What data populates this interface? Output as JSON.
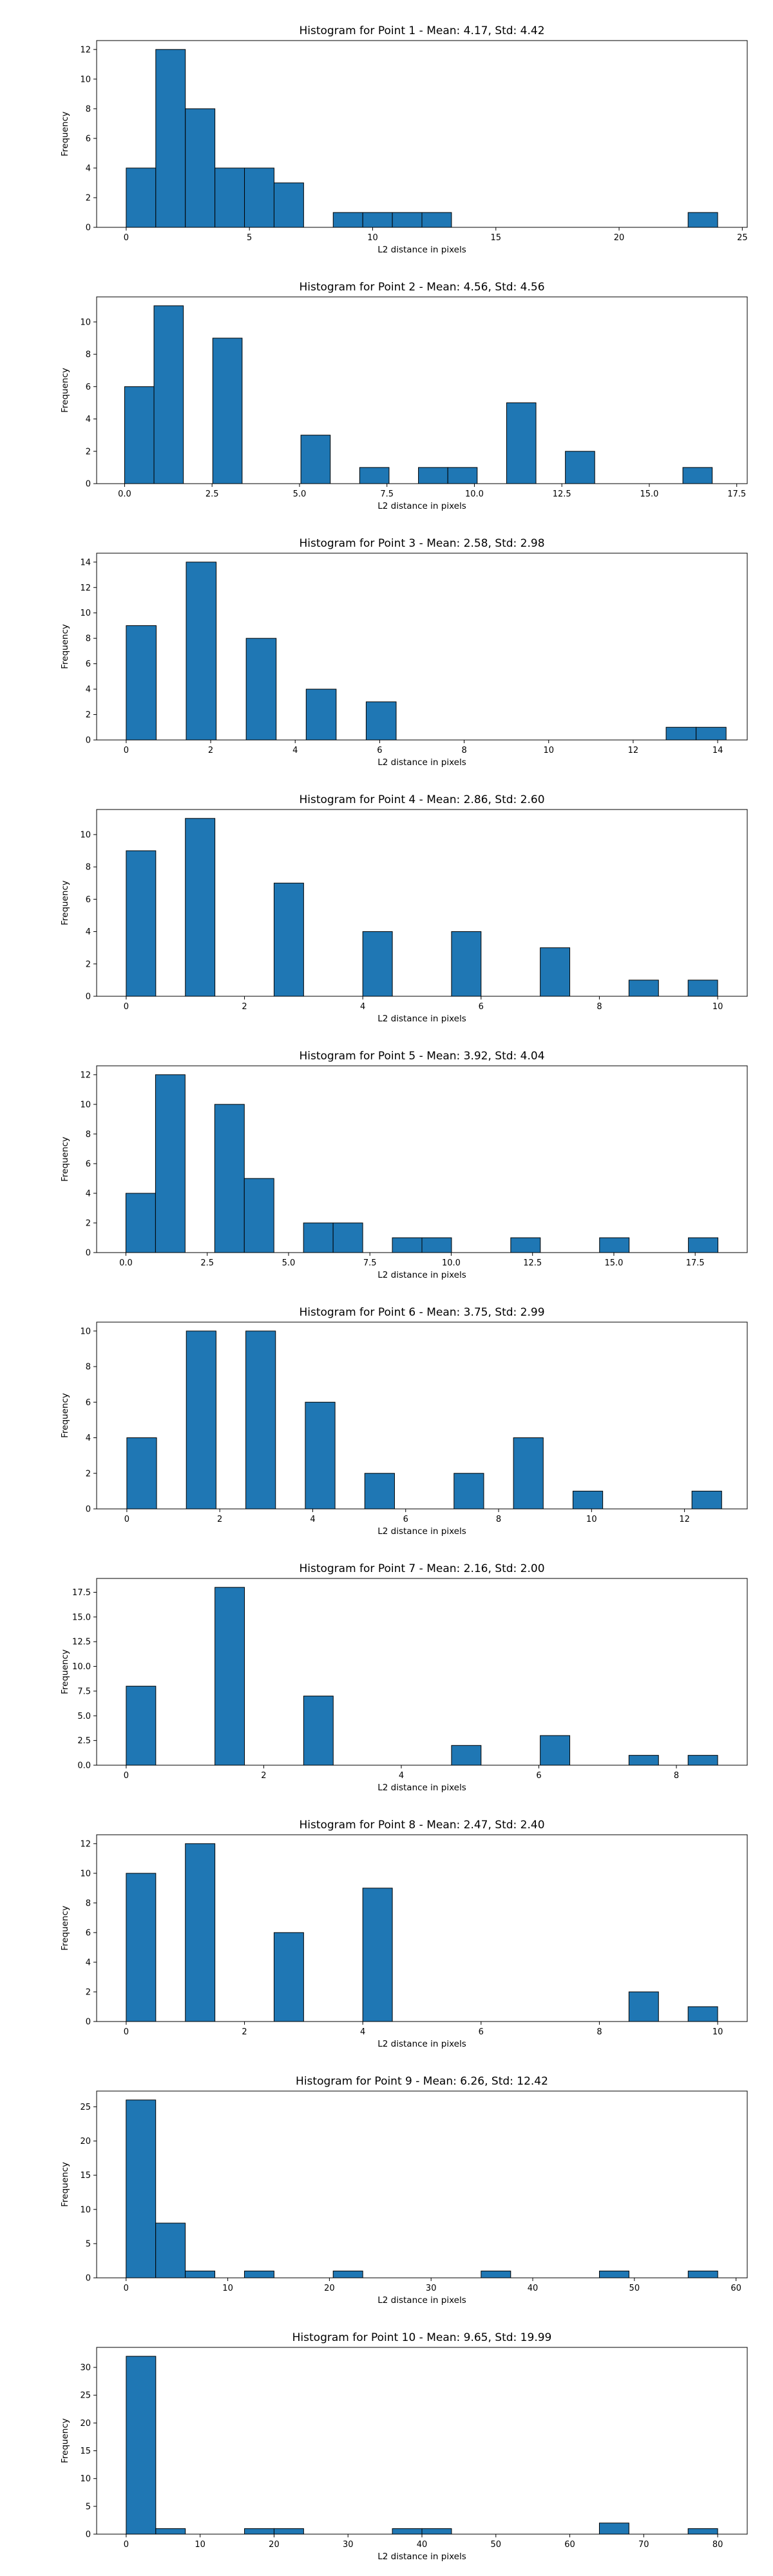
{
  "colors": {
    "bar": "#1f77b4",
    "edge": "#000000",
    "background": "#ffffff"
  },
  "chart_data": [
    {
      "type": "bar",
      "title": "Histogram for Point 1 - Mean: 4.17, Std: 4.42",
      "xlabel": "L2 distance in pixels",
      "ylabel": "Frequency",
      "xlim": [
        -1.2,
        25.2
      ],
      "ylim": [
        0,
        12.6
      ],
      "xticks": [
        0,
        5,
        10,
        15,
        20,
        25
      ],
      "xtick_labels": [
        "0",
        "5",
        "10",
        "15",
        "20",
        "25"
      ],
      "yticks": [
        0,
        2,
        4,
        6,
        8,
        10,
        12
      ],
      "ytick_labels": [
        "0",
        "2",
        "4",
        "6",
        "8",
        "10",
        "12"
      ],
      "bin_start": 0.0,
      "bin_width": 1.2,
      "counts": [
        4,
        12,
        8,
        4,
        4,
        3,
        0,
        1,
        1,
        1,
        1,
        0,
        0,
        0,
        0,
        0,
        0,
        0,
        0,
        1
      ]
    },
    {
      "type": "bar",
      "title": "Histogram for Point 2 - Mean: 4.56, Std: 4.56",
      "xlabel": "L2 distance in pixels",
      "ylabel": "Frequency",
      "xlim": [
        -0.8,
        17.8
      ],
      "ylim": [
        0,
        11.55
      ],
      "xticks": [
        0,
        2.5,
        5,
        7.5,
        10,
        12.5,
        15,
        17.5
      ],
      "xtick_labels": [
        "0.0",
        "2.5",
        "5.0",
        "7.5",
        "10.0",
        "12.5",
        "15.0",
        "17.5"
      ],
      "yticks": [
        0,
        2,
        4,
        6,
        8,
        10
      ],
      "ytick_labels": [
        "0",
        "2",
        "4",
        "6",
        "8",
        "10"
      ],
      "bin_start": 0.0,
      "bin_width": 0.84,
      "counts": [
        6,
        11,
        0,
        9,
        0,
        0,
        3,
        0,
        1,
        0,
        1,
        1,
        0,
        5,
        0,
        2,
        0,
        0,
        0,
        1
      ]
    },
    {
      "type": "bar",
      "title": "Histogram for Point 3 - Mean: 2.58, Std: 2.98",
      "xlabel": "L2 distance in pixels",
      "ylabel": "Frequency",
      "xlim": [
        -0.7,
        14.7
      ],
      "ylim": [
        0,
        14.7
      ],
      "xticks": [
        0,
        2,
        4,
        6,
        8,
        10,
        12,
        14
      ],
      "xtick_labels": [
        "0",
        "2",
        "4",
        "6",
        "8",
        "10",
        "12",
        "14"
      ],
      "yticks": [
        0,
        2,
        4,
        6,
        8,
        10,
        12,
        14
      ],
      "ytick_labels": [
        "0",
        "2",
        "4",
        "6",
        "8",
        "10",
        "12",
        "14"
      ],
      "bin_start": 0.0,
      "bin_width": 0.71,
      "counts": [
        9,
        0,
        14,
        0,
        8,
        0,
        4,
        0,
        3,
        0,
        0,
        0,
        0,
        0,
        0,
        0,
        0,
        0,
        1,
        1
      ]
    },
    {
      "type": "bar",
      "title": "Histogram for Point 4 - Mean: 2.86, Std: 2.60",
      "xlabel": "L2 distance in pixels",
      "ylabel": "Frequency",
      "xlim": [
        -0.5,
        10.5
      ],
      "ylim": [
        0,
        11.55
      ],
      "xticks": [
        0,
        2,
        4,
        6,
        8,
        10
      ],
      "xtick_labels": [
        "0",
        "2",
        "4",
        "6",
        "8",
        "10"
      ],
      "yticks": [
        0,
        2,
        4,
        6,
        8,
        10
      ],
      "ytick_labels": [
        "0",
        "2",
        "4",
        "6",
        "8",
        "10"
      ],
      "bin_start": 0.0,
      "bin_width": 0.5,
      "counts": [
        9,
        0,
        11,
        0,
        0,
        7,
        0,
        0,
        4,
        0,
        0,
        4,
        0,
        0,
        3,
        0,
        0,
        1,
        0,
        1
      ]
    },
    {
      "type": "bar",
      "title": "Histogram for Point 5 - Mean: 3.92, Std: 4.04",
      "xlabel": "L2 distance in pixels",
      "ylabel": "Frequency",
      "xlim": [
        -0.9,
        19.1
      ],
      "ylim": [
        0,
        12.6
      ],
      "xticks": [
        0,
        2.5,
        5,
        7.5,
        10,
        12.5,
        15,
        17.5
      ],
      "xtick_labels": [
        "0.0",
        "2.5",
        "5.0",
        "7.5",
        "10.0",
        "12.5",
        "15.0",
        "17.5"
      ],
      "yticks": [
        0,
        2,
        4,
        6,
        8,
        10,
        12
      ],
      "ytick_labels": [
        "0",
        "2",
        "4",
        "6",
        "8",
        "10",
        "12"
      ],
      "bin_start": 0.0,
      "bin_width": 0.91,
      "counts": [
        4,
        12,
        0,
        10,
        5,
        0,
        2,
        2,
        0,
        1,
        1,
        0,
        0,
        1,
        0,
        0,
        1,
        0,
        0,
        1
      ]
    },
    {
      "type": "bar",
      "title": "Histogram for Point 6 - Mean: 3.75, Std: 2.99",
      "xlabel": "L2 distance in pixels",
      "ylabel": "Frequency",
      "xlim": [
        -0.65,
        13.35
      ],
      "ylim": [
        0,
        10.5
      ],
      "xticks": [
        0,
        2,
        4,
        6,
        8,
        10,
        12
      ],
      "xtick_labels": [
        "0",
        "2",
        "4",
        "6",
        "8",
        "10",
        "12"
      ],
      "yticks": [
        0,
        2,
        4,
        6,
        8,
        10
      ],
      "ytick_labels": [
        "0",
        "2",
        "4",
        "6",
        "8",
        "10"
      ],
      "bin_start": 0.0,
      "bin_width": 0.64,
      "counts": [
        4,
        0,
        10,
        0,
        10,
        0,
        6,
        0,
        2,
        0,
        0,
        2,
        0,
        4,
        0,
        1,
        0,
        0,
        0,
        1
      ]
    },
    {
      "type": "bar",
      "title": "Histogram for Point 7 - Mean: 2.16, Std: 2.00",
      "xlabel": "L2 distance in pixels",
      "ylabel": "Frequency",
      "xlim": [
        -0.43,
        9.03
      ],
      "ylim": [
        0,
        18.9
      ],
      "xticks": [
        0,
        2,
        4,
        6,
        8
      ],
      "xtick_labels": [
        "0",
        "2",
        "4",
        "6",
        "8"
      ],
      "yticks": [
        0,
        2.5,
        5,
        7.5,
        10,
        12.5,
        15,
        17.5
      ],
      "ytick_labels": [
        "0.0",
        "2.5",
        "5.0",
        "7.5",
        "10.0",
        "12.5",
        "15.0",
        "17.5"
      ],
      "bin_start": 0.0,
      "bin_width": 0.43,
      "counts": [
        8,
        0,
        0,
        18,
        0,
        0,
        7,
        0,
        0,
        0,
        0,
        2,
        0,
        0,
        3,
        0,
        0,
        1,
        0,
        1
      ]
    },
    {
      "type": "bar",
      "title": "Histogram for Point 8 - Mean: 2.47, Std: 2.40",
      "xlabel": "L2 distance in pixels",
      "ylabel": "Frequency",
      "xlim": [
        -0.5,
        10.5
      ],
      "ylim": [
        0,
        12.6
      ],
      "xticks": [
        0,
        2,
        4,
        6,
        8,
        10
      ],
      "xtick_labels": [
        "0",
        "2",
        "4",
        "6",
        "8",
        "10"
      ],
      "yticks": [
        0,
        2,
        4,
        6,
        8,
        10,
        12
      ],
      "ytick_labels": [
        "0",
        "2",
        "4",
        "6",
        "8",
        "10",
        "12"
      ],
      "bin_start": 0.0,
      "bin_width": 0.5,
      "counts": [
        10,
        0,
        12,
        0,
        0,
        6,
        0,
        0,
        9,
        0,
        0,
        0,
        0,
        0,
        0,
        0,
        0,
        2,
        0,
        1
      ]
    },
    {
      "type": "bar",
      "title": "Histogram for Point 9 - Mean: 6.26, Std: 12.42",
      "xlabel": "L2 distance in pixels",
      "ylabel": "Frequency",
      "xlim": [
        -2.9,
        61.1
      ],
      "ylim": [
        0,
        27.3
      ],
      "xticks": [
        0,
        10,
        20,
        30,
        40,
        50,
        60
      ],
      "xtick_labels": [
        "0",
        "10",
        "20",
        "30",
        "40",
        "50",
        "60"
      ],
      "yticks": [
        0,
        5,
        10,
        15,
        20,
        25
      ],
      "ytick_labels": [
        "0",
        "5",
        "10",
        "15",
        "20",
        "25"
      ],
      "bin_start": 0.0,
      "bin_width": 2.91,
      "counts": [
        26,
        8,
        1,
        0,
        1,
        0,
        0,
        1,
        0,
        0,
        0,
        0,
        1,
        0,
        0,
        0,
        1,
        0,
        0,
        1
      ]
    },
    {
      "type": "bar",
      "title": "Histogram for Point 10 - Mean: 9.65, Std: 19.99",
      "xlabel": "L2 distance in pixels",
      "ylabel": "Frequency",
      "xlim": [
        -4.0,
        84.0
      ],
      "ylim": [
        0,
        33.6
      ],
      "xticks": [
        0,
        10,
        20,
        30,
        40,
        50,
        60,
        70,
        80
      ],
      "xtick_labels": [
        "0",
        "10",
        "20",
        "30",
        "40",
        "50",
        "60",
        "70",
        "80"
      ],
      "yticks": [
        0,
        5,
        10,
        15,
        20,
        25,
        30
      ],
      "ytick_labels": [
        "0",
        "5",
        "10",
        "15",
        "20",
        "25",
        "30"
      ],
      "bin_start": 0.0,
      "bin_width": 4.0,
      "counts": [
        32,
        1,
        0,
        0,
        1,
        1,
        0,
        0,
        0,
        1,
        1,
        0,
        0,
        0,
        0,
        0,
        2,
        0,
        0,
        1
      ]
    }
  ]
}
